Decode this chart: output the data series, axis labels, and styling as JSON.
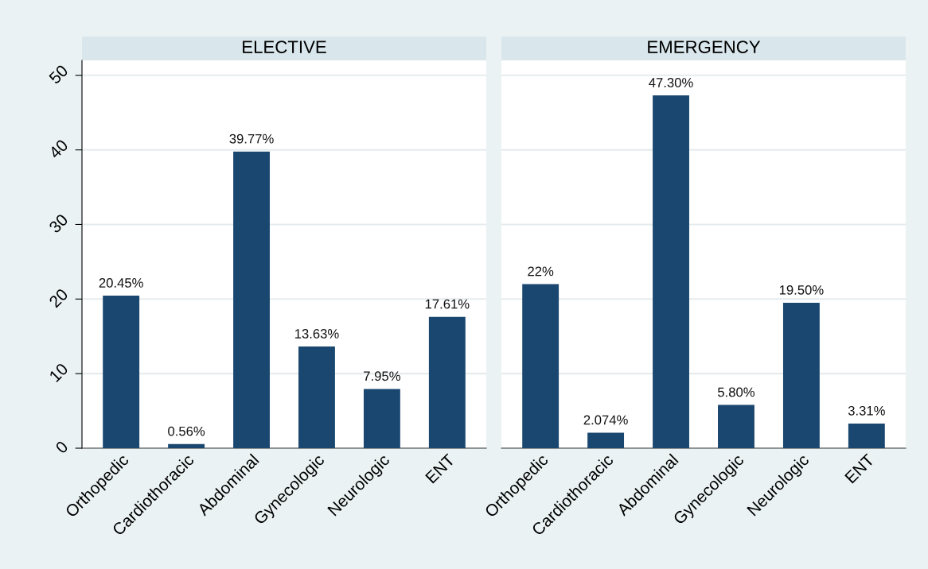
{
  "chart_data": [
    {
      "type": "bar",
      "title": "ELECTIVE",
      "categories": [
        "Orthopedic",
        "Cardiothoracic",
        "Abdominal",
        "Gynecologic",
        "Neurologic",
        "ENT"
      ],
      "values": [
        20.45,
        0.56,
        39.77,
        13.63,
        7.95,
        17.61
      ],
      "value_labels": [
        "20.45%",
        "0.56%",
        "39.77%",
        "13.63%",
        "7.95%",
        "17.61%"
      ],
      "color": "#1a476f",
      "ylim": [
        0,
        52
      ],
      "yticks": [
        0,
        10,
        20,
        30,
        40,
        50
      ],
      "grid": "y",
      "legend": false
    },
    {
      "type": "bar",
      "title": "EMERGENCY",
      "categories": [
        "Orthopedic",
        "Cardiothoracic",
        "Abdominal",
        "Gynecologic",
        "Neurologic",
        "ENT"
      ],
      "values": [
        22,
        2.074,
        47.3,
        5.8,
        19.5,
        3.31
      ],
      "value_labels": [
        "22%",
        "2.074%",
        "47.30%",
        "5.80%",
        "19.50%",
        "3.31%"
      ],
      "color": "#1a476f",
      "ylim": [
        0,
        52
      ],
      "yticks": [
        0,
        10,
        20,
        30,
        40,
        50
      ],
      "grid": "y",
      "legend": false,
      "tick_labels": "x"
    }
  ]
}
